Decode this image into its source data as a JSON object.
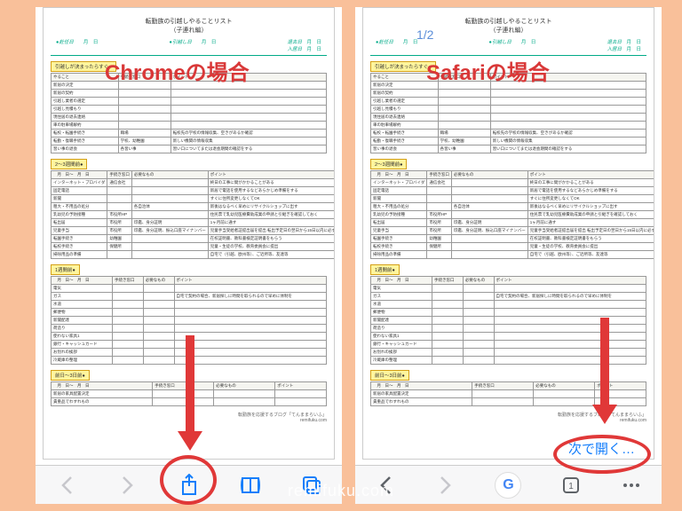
{
  "watermark": "remifuku.com",
  "left_label": "Chromeの場合",
  "right_label": "Safariの場合",
  "next_open": "次で開く…",
  "page_badge": "1/2",
  "doc": {
    "title": "転勤族の引越しやることリスト",
    "subtitle": "（子連れ編）",
    "header_labels": {
      "a": "赴任日",
      "b": "引越し日",
      "c": "退去日",
      "d": "入居日"
    },
    "footer": "転勤族を応援するブログ「てんままらいふ」",
    "footer_url": "remifuku.com",
    "sections": [
      {
        "label": "引越しが決まったらすぐ●",
        "cols": [
          "やること",
          "手続き窓口",
          "ポイント"
        ],
        "rows": [
          [
            "新居の決定",
            "",
            ""
          ],
          [
            "新居の契約",
            "",
            ""
          ],
          [
            "引越し業者の選定",
            "",
            ""
          ],
          [
            "引越し見積もり",
            "",
            ""
          ],
          [
            "現住居の退去連絡",
            "",
            ""
          ],
          [
            "車の駐車場解約",
            "",
            ""
          ],
          [
            "転校・転園手続き",
            "職場",
            "転校先の学校の情報収集、空きがあるか確認"
          ],
          [
            "転勤・復職手続き",
            "学校、幼稚園",
            "新しい機関の情報収集"
          ],
          [
            "習い事の退会",
            "各習い事",
            "習い口についてまたは退会期間の確認をする"
          ]
        ]
      },
      {
        "label": "2～3週間前●",
        "cols": [
          "　月　日～　月　日",
          "手続き窓口",
          "必要なもの",
          "ポイント"
        ],
        "rows": [
          [
            "インターネット・プロバイダ",
            "通信会社",
            "",
            "終日の工事に間がかかることがある"
          ],
          [
            "固定電話",
            "",
            "",
            "新居で電話を使用するなどあらかじめ準備をする"
          ],
          [
            "新聞",
            "",
            "",
            "すぐに住所変更しなくてOK"
          ],
          [
            "粗大・不用品の処分",
            "",
            "各自治体",
            "新後はなるべく早めにリサイクルショップに出す"
          ],
          [
            "乳幼児の予防接種",
            "市役所HP",
            "",
            "住民票で乳幼児医療費助成業の申請と引継ぎを確認しておく"
          ],
          [
            "転出届",
            "市役所",
            "印鑑、身分証明",
            "1ヶ月前に通す"
          ],
          [
            "児童手当",
            "市役所",
            "印鑑、身分証明、振込口座マイナンバー",
            "児童手当受給者証提出届を提出\n転出予定日の翌日から15日以内に必ず届け出れば所得制限証明書不要（マイナンバーの登録により不要になることも"
          ],
          [
            "転園手続き",
            "幼稚園",
            "",
            "在校証明書、教科書検定証明書をもらう"
          ],
          [
            "転校手続き",
            "保健所",
            "",
            "児童・生徒の学校、教育委員会に提出"
          ],
          [
            "掃除用品の準備",
            "",
            "",
            "自宅で（引越、欧州等）、ご近所等、友達等"
          ]
        ]
      },
      {
        "label": "1週間前●",
        "cols": [
          "　月　日～　月　日",
          "手続き窓口",
          "必要なもの",
          "ポイント"
        ],
        "rows": [
          [
            "電気",
            "",
            "",
            ""
          ],
          [
            "ガス",
            "",
            "",
            "自宅で契約の場合、新居探しに時間を取られるので早めに体制を"
          ],
          [
            "水道",
            "",
            "",
            ""
          ],
          [
            "郵便物",
            "",
            "",
            ""
          ],
          [
            "新聞配達",
            "",
            "",
            ""
          ],
          [
            "荷造り",
            "",
            "",
            ""
          ],
          [
            "使わない家具1",
            "",
            "",
            ""
          ],
          [
            "銀行・キャッシュカード",
            "",
            "",
            ""
          ],
          [
            "お別れの挨拶",
            "",
            "",
            ""
          ],
          [
            "冷蔵庫の整理",
            "",
            "",
            ""
          ]
        ]
      },
      {
        "label": "前日～3日前●",
        "cols": [
          "　月　日～　月　日",
          "手続き窓口",
          "必要なもの",
          "ポイント"
        ],
        "rows": [
          [
            "新居の家具配置決定",
            "",
            "",
            ""
          ],
          [
            "貴重品でわすれもの",
            "",
            "",
            ""
          ]
        ]
      }
    ]
  },
  "colors": {
    "bg": "#f9c09a",
    "accent_red": "#e03838",
    "ios_blue": "#157efb",
    "ios_gray": "#8e8e93",
    "green": "#0a8"
  }
}
